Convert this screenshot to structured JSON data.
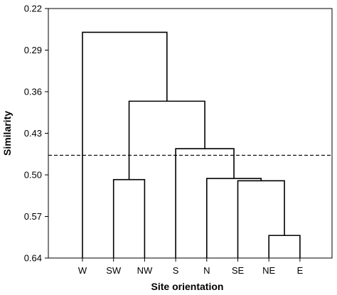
{
  "chart_data": {
    "type": "dendrogram",
    "xlabel": "Site orientation",
    "ylabel": "Similarity",
    "ylim": [
      0.22,
      0.64
    ],
    "y_inverted": true,
    "yticks": [
      0.22,
      0.29,
      0.36,
      0.43,
      0.5,
      0.57,
      0.64
    ],
    "ytick_labels": [
      "0.22",
      "0.29",
      "0.36",
      "0.43",
      "0.50",
      "0.57",
      "0.64"
    ],
    "leaves": [
      "W",
      "SW",
      "NW",
      "S",
      "N",
      "SE",
      "NE",
      "E"
    ],
    "leaf_baseline": 0.64,
    "merges": [
      {
        "left": "leaf:NE",
        "right": "leaf:E",
        "height": 0.602
      },
      {
        "left": "leaf:SE",
        "right": "merge:0",
        "height": 0.51
      },
      {
        "left": "leaf:N",
        "right": "merge:1",
        "height": 0.506
      },
      {
        "left": "leaf:SW",
        "right": "leaf:NW",
        "height": 0.508
      },
      {
        "left": "leaf:S",
        "right": "merge:2",
        "height": 0.456
      },
      {
        "left": "merge:3",
        "right": "merge:4",
        "height": 0.376
      },
      {
        "left": "leaf:W",
        "right": "merge:5",
        "height": 0.26
      }
    ],
    "cutoff": 0.467,
    "grid": false
  }
}
